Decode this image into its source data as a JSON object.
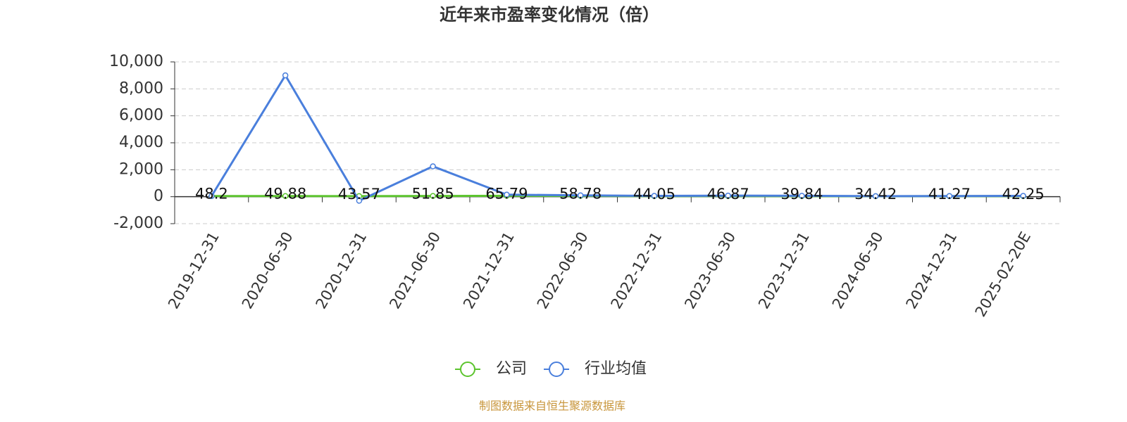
{
  "chart_data": {
    "type": "line",
    "title": "近年来市盈率变化情况（倍）",
    "categories": [
      "2019-12-31",
      "2020-06-30",
      "2020-12-31",
      "2021-06-30",
      "2021-12-31",
      "2022-06-30",
      "2022-12-31",
      "2023-06-30",
      "2023-12-31",
      "2024-06-30",
      "2024-12-31",
      "2025-02-20E"
    ],
    "series": [
      {
        "name": "公司",
        "color": "#5cc42e",
        "values": [
          48.2,
          49.88,
          43.57,
          51.85,
          65.79,
          58.78,
          44.05,
          46.87,
          39.84,
          34.42,
          41.27,
          42.25
        ]
      },
      {
        "name": "行业均值",
        "color": "#4a7fdc",
        "values": [
          50,
          9000,
          -300,
          2250,
          150,
          100,
          60,
          80,
          70,
          40,
          50,
          60
        ]
      }
    ],
    "ylim": [
      -2000,
      10000
    ],
    "yticks": [
      {
        "value": -2000,
        "label": "-2,000"
      },
      0,
      {
        "value": 2000,
        "label": "2,000"
      },
      {
        "value": 4000,
        "label": "4,000"
      },
      {
        "value": 6000,
        "label": "6,000"
      },
      {
        "value": 8000,
        "label": "8,000"
      },
      {
        "value": 10000,
        "label": "10,000"
      }
    ],
    "grid": true,
    "footer": "制图数据来自恒生聚源数据库"
  }
}
